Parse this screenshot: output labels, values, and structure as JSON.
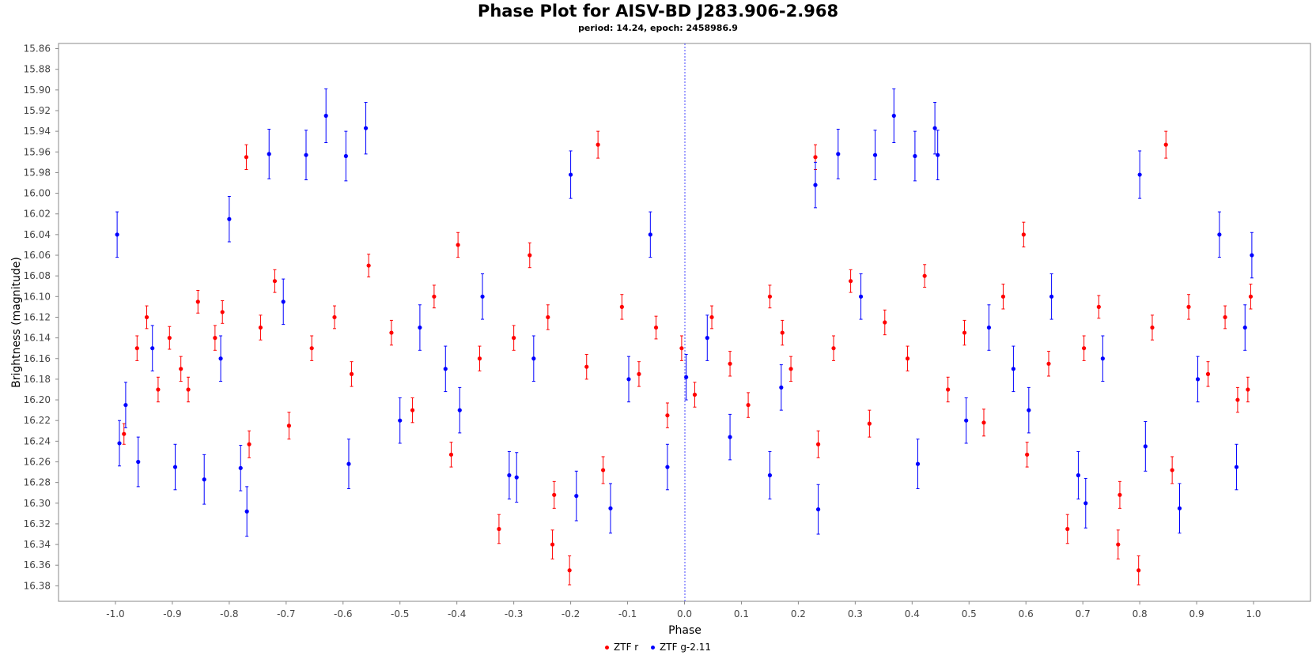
{
  "chart_data": {
    "type": "scatter",
    "title": "Phase Plot for AISV-BD J283.906-2.968",
    "subtitle": "period: 14.24, epoch: 2458986.9",
    "xlabel": "Phase",
    "ylabel": "Brightness (magnitude)",
    "xlim": [
      -1.1,
      1.1
    ],
    "ylim": [
      16.395,
      15.855
    ],
    "y_inverted": true,
    "x_ticks": [
      "-1.0",
      "-0.9",
      "-0.8",
      "-0.7",
      "-0.6",
      "-0.5",
      "-0.4",
      "-0.3",
      "-0.2",
      "-0.1",
      "0.0",
      "0.1",
      "0.2",
      "0.3",
      "0.4",
      "0.5",
      "0.6",
      "0.7",
      "0.8",
      "0.9",
      "1.0"
    ],
    "y_ticks": [
      "15.86",
      "15.88",
      "15.90",
      "15.92",
      "15.94",
      "15.96",
      "15.98",
      "16.00",
      "16.02",
      "16.04",
      "16.06",
      "16.08",
      "16.10",
      "16.12",
      "16.14",
      "16.16",
      "16.18",
      "16.20",
      "16.22",
      "16.24",
      "16.26",
      "16.28",
      "16.30",
      "16.32",
      "16.34",
      "16.36",
      "16.38"
    ],
    "grid": false,
    "reference_line_x": 0.0,
    "legend_position": "bottom",
    "series": [
      {
        "name": "ZTF r",
        "color": "#ff0000",
        "points": [
          [
            -0.985,
            16.233,
            0.01
          ],
          [
            -0.962,
            16.15,
            0.012
          ],
          [
            -0.945,
            16.12,
            0.011
          ],
          [
            -0.925,
            16.19,
            0.012
          ],
          [
            -0.905,
            16.14,
            0.011
          ],
          [
            -0.885,
            16.17,
            0.012
          ],
          [
            -0.872,
            16.19,
            0.012
          ],
          [
            -0.855,
            16.105,
            0.011
          ],
          [
            -0.825,
            16.14,
            0.012
          ],
          [
            -0.812,
            16.115,
            0.011
          ],
          [
            -0.77,
            15.965,
            0.012
          ],
          [
            -0.765,
            16.243,
            0.013
          ],
          [
            -0.745,
            16.13,
            0.012
          ],
          [
            -0.72,
            16.085,
            0.011
          ],
          [
            -0.695,
            16.225,
            0.013
          ],
          [
            -0.655,
            16.15,
            0.012
          ],
          [
            -0.615,
            16.12,
            0.011
          ],
          [
            -0.585,
            16.175,
            0.012
          ],
          [
            -0.555,
            16.07,
            0.011
          ],
          [
            -0.515,
            16.135,
            0.012
          ],
          [
            -0.478,
            16.21,
            0.012
          ],
          [
            -0.44,
            16.1,
            0.011
          ],
          [
            -0.41,
            16.253,
            0.012
          ],
          [
            -0.398,
            16.05,
            0.012
          ],
          [
            -0.36,
            16.16,
            0.012
          ],
          [
            -0.326,
            16.325,
            0.014
          ],
          [
            -0.3,
            16.14,
            0.012
          ],
          [
            -0.272,
            16.06,
            0.012
          ],
          [
            -0.24,
            16.12,
            0.012
          ],
          [
            -0.232,
            16.34,
            0.014
          ],
          [
            -0.229,
            16.292,
            0.013
          ],
          [
            -0.202,
            16.365,
            0.014
          ],
          [
            -0.172,
            16.168,
            0.012
          ],
          [
            -0.152,
            15.953,
            0.013
          ],
          [
            -0.143,
            16.268,
            0.013
          ],
          [
            -0.11,
            16.11,
            0.012
          ],
          [
            -0.08,
            16.175,
            0.012
          ],
          [
            -0.05,
            16.13,
            0.011
          ],
          [
            -0.03,
            16.215,
            0.012
          ],
          [
            -0.005,
            16.15,
            0.012
          ],
          [
            0.018,
            16.195,
            0.012
          ],
          [
            0.048,
            16.12,
            0.011
          ],
          [
            0.08,
            16.165,
            0.012
          ],
          [
            0.112,
            16.205,
            0.012
          ],
          [
            0.15,
            16.1,
            0.011
          ],
          [
            0.172,
            16.135,
            0.012
          ],
          [
            0.187,
            16.17,
            0.012
          ],
          [
            0.23,
            15.965,
            0.012
          ],
          [
            0.235,
            16.243,
            0.013
          ],
          [
            0.262,
            16.15,
            0.012
          ],
          [
            0.292,
            16.085,
            0.011
          ],
          [
            0.325,
            16.223,
            0.013
          ],
          [
            0.352,
            16.125,
            0.012
          ],
          [
            0.392,
            16.16,
            0.012
          ],
          [
            0.422,
            16.08,
            0.011
          ],
          [
            0.463,
            16.19,
            0.012
          ],
          [
            0.492,
            16.135,
            0.012
          ],
          [
            0.526,
            16.222,
            0.013
          ],
          [
            0.56,
            16.1,
            0.012
          ],
          [
            0.596,
            16.04,
            0.012
          ],
          [
            0.602,
            16.253,
            0.012
          ],
          [
            0.64,
            16.165,
            0.012
          ],
          [
            0.673,
            16.325,
            0.014
          ],
          [
            0.702,
            16.15,
            0.012
          ],
          [
            0.728,
            16.11,
            0.011
          ],
          [
            0.765,
            16.292,
            0.013
          ],
          [
            0.762,
            16.34,
            0.014
          ],
          [
            0.798,
            16.365,
            0.014
          ],
          [
            0.822,
            16.13,
            0.012
          ],
          [
            0.846,
            15.953,
            0.013
          ],
          [
            0.857,
            16.268,
            0.013
          ],
          [
            0.886,
            16.11,
            0.012
          ],
          [
            0.92,
            16.175,
            0.012
          ],
          [
            0.95,
            16.12,
            0.011
          ],
          [
            0.972,
            16.2,
            0.012
          ],
          [
            0.995,
            16.1,
            0.012
          ],
          [
            0.99,
            16.19,
            0.012
          ]
        ]
      },
      {
        "name": "ZTF g-2.11",
        "color": "#0000ff",
        "points": [
          [
            -0.997,
            16.04,
            0.022
          ],
          [
            -0.993,
            16.242,
            0.022
          ],
          [
            -0.982,
            16.205,
            0.022
          ],
          [
            -0.96,
            16.26,
            0.024
          ],
          [
            -0.935,
            16.15,
            0.022
          ],
          [
            -0.895,
            16.265,
            0.022
          ],
          [
            -0.844,
            16.277,
            0.024
          ],
          [
            -0.815,
            16.16,
            0.022
          ],
          [
            -0.8,
            16.025,
            0.022
          ],
          [
            -0.78,
            16.266,
            0.022
          ],
          [
            -0.769,
            16.308,
            0.024
          ],
          [
            -0.73,
            15.962,
            0.024
          ],
          [
            -0.705,
            16.105,
            0.022
          ],
          [
            -0.665,
            15.963,
            0.024
          ],
          [
            -0.63,
            15.925,
            0.026
          ],
          [
            -0.595,
            15.964,
            0.024
          ],
          [
            -0.59,
            16.262,
            0.024
          ],
          [
            -0.56,
            15.937,
            0.025
          ],
          [
            -0.5,
            16.22,
            0.022
          ],
          [
            -0.465,
            16.13,
            0.022
          ],
          [
            -0.42,
            16.17,
            0.022
          ],
          [
            -0.395,
            16.21,
            0.022
          ],
          [
            -0.355,
            16.1,
            0.022
          ],
          [
            -0.308,
            16.273,
            0.023
          ],
          [
            -0.295,
            16.275,
            0.024
          ],
          [
            -0.265,
            16.16,
            0.022
          ],
          [
            -0.2,
            15.982,
            0.023
          ],
          [
            -0.19,
            16.293,
            0.024
          ],
          [
            -0.13,
            16.305,
            0.024
          ],
          [
            -0.098,
            16.18,
            0.022
          ],
          [
            -0.06,
            16.04,
            0.022
          ],
          [
            -0.03,
            16.265,
            0.022
          ],
          [
            0.003,
            16.178,
            0.022
          ],
          [
            0.04,
            16.14,
            0.022
          ],
          [
            0.08,
            16.236,
            0.022
          ],
          [
            0.15,
            16.273,
            0.023
          ],
          [
            0.17,
            16.188,
            0.022
          ],
          [
            0.23,
            15.992,
            0.022
          ],
          [
            0.235,
            16.306,
            0.024
          ],
          [
            0.27,
            15.962,
            0.024
          ],
          [
            0.31,
            16.1,
            0.022
          ],
          [
            0.335,
            15.963,
            0.024
          ],
          [
            0.368,
            15.925,
            0.026
          ],
          [
            0.405,
            15.964,
            0.024
          ],
          [
            0.41,
            16.262,
            0.024
          ],
          [
            0.44,
            15.937,
            0.025
          ],
          [
            0.445,
            15.963,
            0.024
          ],
          [
            0.495,
            16.22,
            0.022
          ],
          [
            0.535,
            16.13,
            0.022
          ],
          [
            0.578,
            16.17,
            0.022
          ],
          [
            0.605,
            16.21,
            0.022
          ],
          [
            0.645,
            16.1,
            0.022
          ],
          [
            0.692,
            16.273,
            0.023
          ],
          [
            0.705,
            16.3,
            0.024
          ],
          [
            0.735,
            16.16,
            0.022
          ],
          [
            0.8,
            15.982,
            0.023
          ],
          [
            0.81,
            16.245,
            0.024
          ],
          [
            0.87,
            16.305,
            0.024
          ],
          [
            0.902,
            16.18,
            0.022
          ],
          [
            0.94,
            16.04,
            0.022
          ],
          [
            0.97,
            16.265,
            0.022
          ],
          [
            0.985,
            16.13,
            0.022
          ],
          [
            0.997,
            16.06,
            0.022
          ]
        ]
      }
    ]
  },
  "legend": {
    "items": [
      {
        "label": "ZTF r",
        "color": "#ff0000"
      },
      {
        "label": "ZTF g-2.11",
        "color": "#0000ff"
      }
    ]
  }
}
